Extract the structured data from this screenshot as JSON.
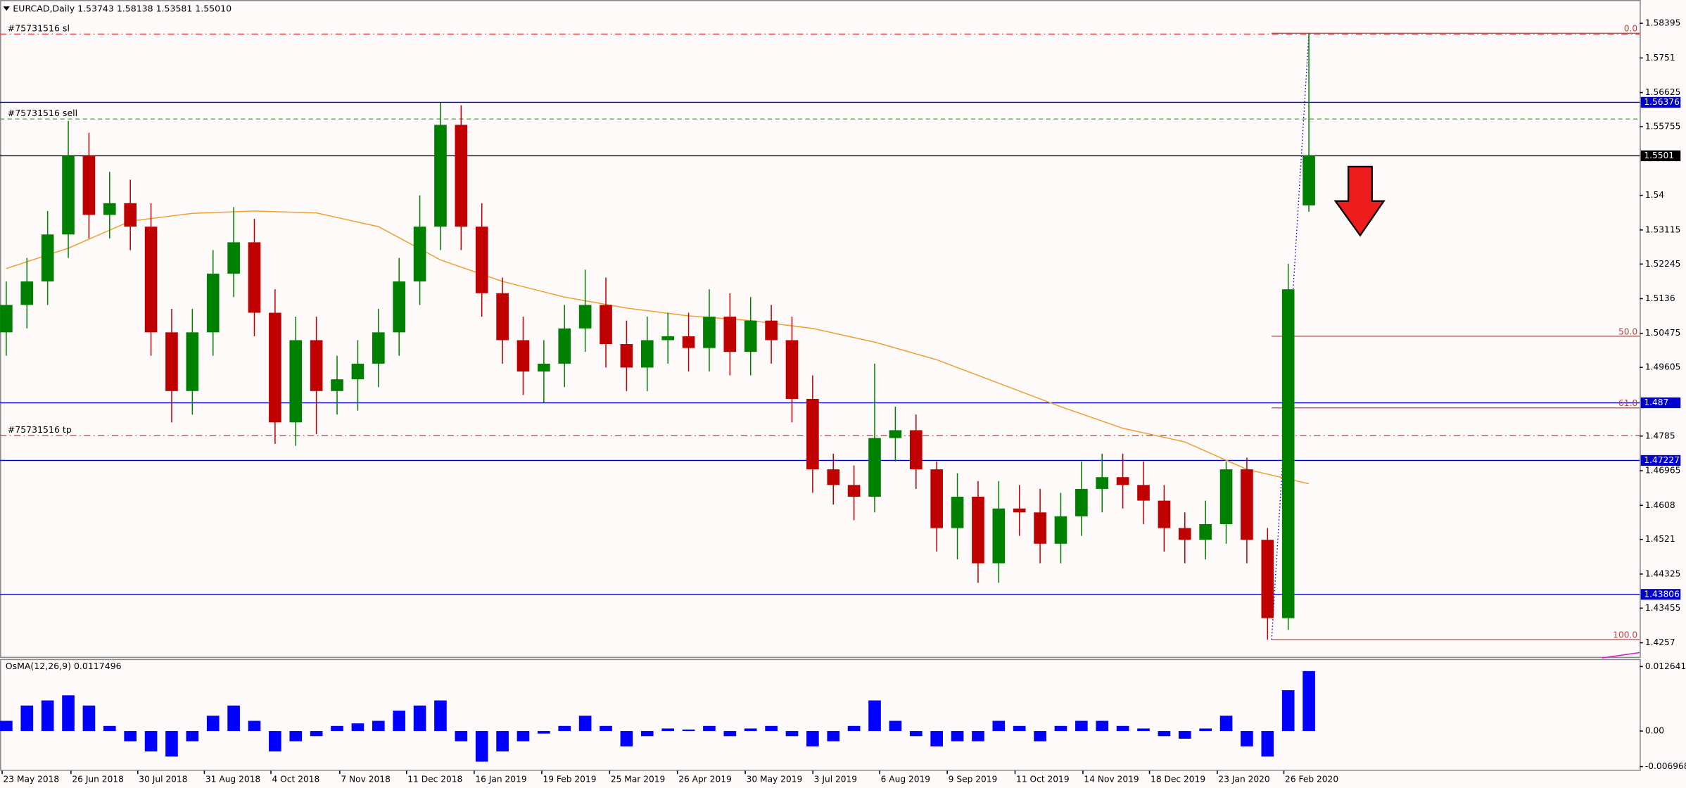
{
  "chart_data": {
    "type": "candlestick",
    "title": "EURCAD,Daily  1.53743 1.58138 1.53581 1.55010",
    "up_color": "#008000",
    "down_color": "#c00000",
    "xlim": [
      -0.3,
      79
    ],
    "ylim": [
      1.4221,
      1.5899
    ],
    "yticks": [
      1.58395,
      1.5751,
      1.56625,
      1.55755,
      1.54,
      1.53115,
      1.52245,
      1.5136,
      1.50475,
      1.49605,
      1.4785,
      1.46965,
      1.4608,
      1.4521,
      1.44325,
      1.43455,
      1.4257
    ],
    "xticks": [
      {
        "value": -0.2,
        "label": "23 May 2018"
      },
      {
        "value": 3.13,
        "label": "26 Jun 2018"
      },
      {
        "value": 6.36,
        "label": "30 Jul 2018"
      },
      {
        "value": 9.58,
        "label": "31 Aug 2018"
      },
      {
        "value": 12.8,
        "label": "4 Oct 2018"
      },
      {
        "value": 16.13,
        "label": "7 Nov 2018"
      },
      {
        "value": 19.36,
        "label": "11 Dec 2018"
      },
      {
        "value": 22.63,
        "label": "16 Jan 2019"
      },
      {
        "value": 25.9,
        "label": "19 Feb 2019"
      },
      {
        "value": 29.18,
        "label": "25 Mar 2019"
      },
      {
        "value": 32.46,
        "label": "26 Apr 2019"
      },
      {
        "value": 35.74,
        "label": "30 May 2019"
      },
      {
        "value": 39.01,
        "label": "3 Jul 2019"
      },
      {
        "value": 42.24,
        "label": "6 Aug 2019"
      },
      {
        "value": 45.51,
        "label": "9 Sep 2019"
      },
      {
        "value": 48.79,
        "label": "11 Oct 2019"
      },
      {
        "value": 52.07,
        "label": "14 Nov 2019"
      },
      {
        "value": 55.29,
        "label": "18 Dec 2019"
      },
      {
        "value": 58.57,
        "label": "23 Jan 2020"
      },
      {
        "value": 61.79,
        "label": "26 Feb 2020"
      }
    ],
    "open": [
      1.505,
      1.512,
      1.518,
      1.53,
      1.55,
      1.535,
      1.538,
      1.532,
      1.505,
      1.49,
      1.505,
      1.52,
      1.528,
      1.51,
      1.482,
      1.503,
      1.49,
      1.493,
      1.497,
      1.505,
      1.518,
      1.532,
      1.558,
      1.532,
      1.515,
      1.503,
      1.495,
      1.497,
      1.506,
      1.512,
      1.502,
      1.496,
      1.503,
      1.504,
      1.501,
      1.509,
      1.5,
      1.508,
      1.503,
      1.488,
      1.47,
      1.466,
      1.463,
      1.478,
      1.48,
      1.47,
      1.455,
      1.463,
      1.446,
      1.46,
      1.459,
      1.451,
      1.458,
      1.465,
      1.468,
      1.466,
      1.462,
      1.455,
      1.452,
      1.456,
      1.47,
      1.452,
      1.432,
      1.53743
    ],
    "high": [
      1.518,
      1.524,
      1.536,
      1.559,
      1.556,
      1.546,
      1.544,
      1.538,
      1.511,
      1.511,
      1.526,
      1.537,
      1.534,
      1.516,
      1.509,
      1.509,
      1.499,
      1.503,
      1.511,
      1.524,
      1.54,
      1.5637,
      1.563,
      1.538,
      1.519,
      1.509,
      1.503,
      1.512,
      1.521,
      1.519,
      1.508,
      1.509,
      1.51,
      1.51,
      1.516,
      1.515,
      1.514,
      1.512,
      1.509,
      1.494,
      1.474,
      1.471,
      1.497,
      1.486,
      1.484,
      1.472,
      1.469,
      1.467,
      1.467,
      1.466,
      1.465,
      1.464,
      1.472,
      1.474,
      1.474,
      1.472,
      1.466,
      1.459,
      1.462,
      1.472,
      1.473,
      1.455,
      1.5225,
      1.58138
    ],
    "low": [
      1.499,
      1.506,
      1.512,
      1.524,
      1.529,
      1.529,
      1.526,
      1.499,
      1.482,
      1.484,
      1.499,
      1.514,
      1.504,
      1.4765,
      1.476,
      1.479,
      1.484,
      1.485,
      1.491,
      1.499,
      1.512,
      1.526,
      1.526,
      1.509,
      1.497,
      1.489,
      1.487,
      1.491,
      1.5,
      1.496,
      1.49,
      1.49,
      1.497,
      1.495,
      1.495,
      1.494,
      1.494,
      1.497,
      1.482,
      1.464,
      1.461,
      1.457,
      1.459,
      1.472,
      1.465,
      1.449,
      1.447,
      1.441,
      1.441,
      1.453,
      1.446,
      1.446,
      1.453,
      1.459,
      1.46,
      1.456,
      1.449,
      1.446,
      1.447,
      1.451,
      1.446,
      1.4265,
      1.429,
      1.53581
    ],
    "close": [
      1.512,
      1.518,
      1.53,
      1.55,
      1.535,
      1.538,
      1.532,
      1.505,
      1.49,
      1.505,
      1.52,
      1.528,
      1.51,
      1.482,
      1.503,
      1.49,
      1.493,
      1.497,
      1.505,
      1.518,
      1.532,
      1.558,
      1.532,
      1.515,
      1.503,
      1.495,
      1.497,
      1.506,
      1.512,
      1.502,
      1.496,
      1.503,
      1.504,
      1.501,
      1.509,
      1.5,
      1.508,
      1.503,
      1.488,
      1.47,
      1.466,
      1.463,
      1.478,
      1.48,
      1.47,
      1.455,
      1.463,
      1.446,
      1.46,
      1.459,
      1.451,
      1.458,
      1.465,
      1.468,
      1.466,
      1.462,
      1.455,
      1.452,
      1.456,
      1.47,
      1.452,
      1.432,
      1.516,
      1.5501
    ],
    "moving_average": {
      "color": "#f0a030",
      "x": [
        0,
        3,
        6,
        9,
        12,
        15,
        18,
        21,
        24,
        27,
        30,
        33,
        36,
        39,
        42,
        45,
        48,
        51,
        54,
        57,
        60,
        63
      ],
      "values": [
        1.5213,
        1.5265,
        1.5334,
        1.5354,
        1.536,
        1.5355,
        1.532,
        1.5235,
        1.518,
        1.514,
        1.5112,
        1.5092,
        1.508,
        1.506,
        1.5025,
        1.498,
        1.492,
        1.486,
        1.4805,
        1.477,
        1.47,
        1.4663
      ]
    },
    "price_levels": [
      {
        "value": 1.56376,
        "color": "#0000cd"
      },
      {
        "value": 1.5501,
        "color": "#000000"
      },
      {
        "value": 1.487,
        "color": "#0000cd"
      },
      {
        "value": 1.47227,
        "color": "#0000cd"
      },
      {
        "value": 1.43806,
        "color": "#0000cd"
      }
    ],
    "orders": [
      {
        "label": "#75731516 sl",
        "price": 1.5812,
        "color": "#d03030"
      },
      {
        "label": "#75731516 sell",
        "price": 1.5595,
        "color": "#30b030"
      },
      {
        "label": "#75731516 tp",
        "price": 1.4786,
        "color": "#d03030"
      }
    ],
    "fibonacci": {
      "color": "#c04040",
      "start": 61.2,
      "levels": [
        {
          "label": "0.0",
          "price": 1.5814
        },
        {
          "label": "50.0",
          "price": 1.504
        },
        {
          "label": "61.8",
          "price": 1.4857
        },
        {
          "label": "100.0",
          "price": 1.4265
        }
      ]
    },
    "oscillator": {
      "title": "OsMA(12,26,9) 0.0117496",
      "color": "#0000ff",
      "ylim": [
        -0.00779,
        0.01412
      ],
      "yticks": [
        0.012641,
        {
          "value": 0,
          "label": "0.00"
        },
        -0.006968
      ],
      "values": [
        0.002,
        0.005,
        0.006,
        0.007,
        0.005,
        0.001,
        -0.002,
        -0.004,
        -0.005,
        -0.002,
        0.003,
        0.005,
        0.002,
        -0.004,
        -0.002,
        -0.001,
        0.001,
        0.0015,
        0.002,
        0.004,
        0.005,
        0.006,
        -0.002,
        -0.006,
        -0.004,
        -0.002,
        -0.0005,
        0.001,
        0.003,
        0.001,
        -0.003,
        -0.001,
        0.0005,
        0.0003,
        0.001,
        -0.001,
        0.0005,
        0.001,
        -0.001,
        -0.003,
        -0.002,
        0.001,
        0.006,
        0.002,
        -0.001,
        -0.003,
        -0.002,
        -0.002,
        0.002,
        0.001,
        -0.002,
        0.001,
        0.002,
        0.002,
        0.001,
        0.0005,
        -0.001,
        -0.0015,
        0.0005,
        0.003,
        -0.003,
        -0.005,
        0.008,
        0.0117496
      ]
    }
  }
}
